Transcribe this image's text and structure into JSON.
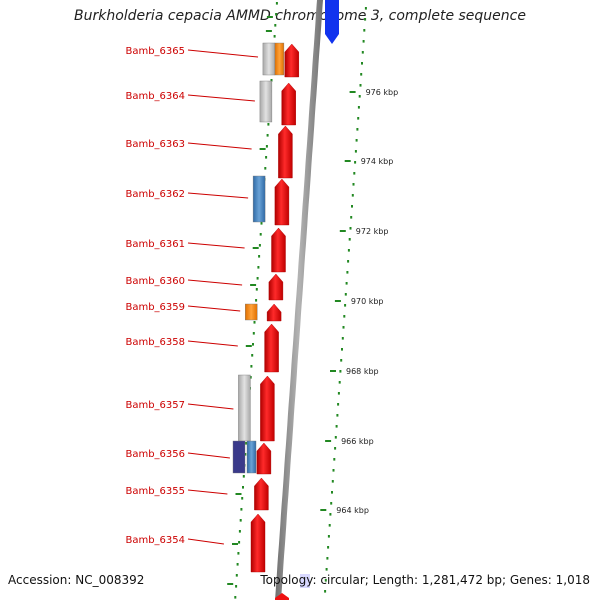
{
  "title": "Burkholderia cepacia AMMD chromosome 3, complete sequence",
  "footer": {
    "accession": "Accession: NC_008392",
    "summary": "Topology: circular; Length: 1,281,472 bp; Genes: 1,018"
  },
  "genes": [
    {
      "name": "Bamb_6365"
    },
    {
      "name": "Bamb_6364"
    },
    {
      "name": "Bamb_6363"
    },
    {
      "name": "Bamb_6362"
    },
    {
      "name": "Bamb_6361"
    },
    {
      "name": "Bamb_6360"
    },
    {
      "name": "Bamb_6359"
    },
    {
      "name": "Bamb_6358"
    },
    {
      "name": "Bamb_6357"
    },
    {
      "name": "Bamb_6356"
    },
    {
      "name": "Bamb_6355"
    },
    {
      "name": "Bamb_6354"
    }
  ],
  "ticks": [
    "976 kbp",
    "974 kbp",
    "972 kbp",
    "970 kbp",
    "968 kbp",
    "966 kbp",
    "964 kbp"
  ],
  "colors": {
    "gene_forward": "#ee1111",
    "gene_label": "#cc0000",
    "backbone": "#888888",
    "dots": "#228822",
    "blast_gray": "#c4c4c4",
    "blast_orange": "#ff8c00",
    "blast_blue": "#4a86c0",
    "blast_navy": "#3a3a8a",
    "top_feature": "#1133ee"
  }
}
